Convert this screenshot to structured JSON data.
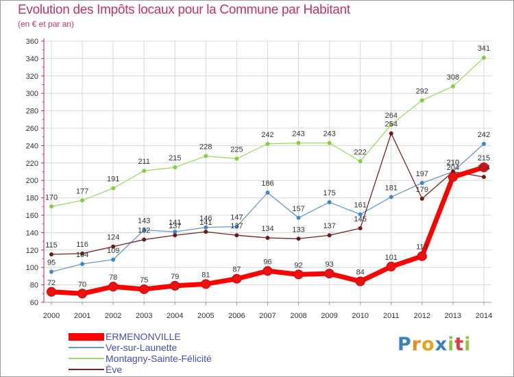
{
  "title": "Evolution des Impôts locaux pour la Commune par Habitant",
  "subtitle": "(en € et par an)",
  "logo_text": "Proxiti",
  "chart_data": {
    "type": "line",
    "title": "Evolution des Impôts locaux pour la Commune par Habitant",
    "subtitle": "(en € et par an)",
    "x": [
      "2000",
      "2001",
      "2002",
      "2003",
      "2004",
      "2005",
      "2006",
      "2007",
      "2008",
      "2009",
      "2010",
      "2011",
      "2012",
      "2013",
      "2014"
    ],
    "yticks": [
      60,
      80,
      100,
      120,
      140,
      160,
      180,
      200,
      220,
      240,
      260,
      280,
      300,
      320,
      340,
      360
    ],
    "ylim": [
      60,
      360
    ],
    "grid": true,
    "legend_position": "bottom-left",
    "series": [
      {
        "name": "ERMENONVILLE",
        "color": "#ff0000",
        "marker": "#ee1111",
        "values": [
          72,
          70,
          78,
          75,
          79,
          81,
          87,
          96,
          92,
          93,
          84,
          101,
          113,
          204,
          215
        ],
        "emphasis": true
      },
      {
        "name": "Ver-sur-Launette",
        "color": "#6699cc",
        "marker": "#3f88c5",
        "values": [
          95,
          104,
          109,
          143,
          141,
          146,
          147,
          186,
          157,
          175,
          161,
          181,
          197,
          210,
          242
        ]
      },
      {
        "name": "Montagny-Sainte-Félicité",
        "color": "#99dd66",
        "marker": "#88cc44",
        "values": [
          170,
          177,
          191,
          211,
          215,
          228,
          225,
          242,
          243,
          243,
          222,
          264,
          292,
          308,
          341
        ]
      },
      {
        "name": "Ève",
        "color": "#772222",
        "marker": "#6b1a1a",
        "values": [
          115,
          116,
          124,
          132,
          137,
          141,
          137,
          134,
          133,
          137,
          145,
          254,
          179,
          210,
          204
        ]
      }
    ]
  }
}
